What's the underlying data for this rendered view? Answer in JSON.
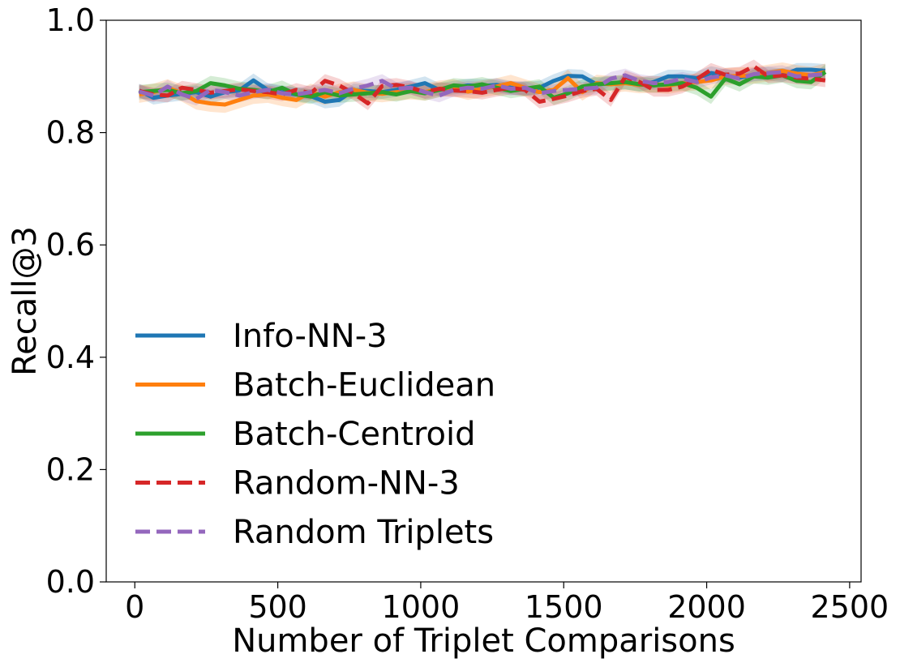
{
  "chart_data": {
    "type": "line",
    "title": "",
    "xlabel": "Number of Triplet Comparisons",
    "ylabel": "Recall@3",
    "xlim": [
      -100,
      2540
    ],
    "ylim": [
      0.0,
      1.0
    ],
    "xticks": [
      0,
      500,
      1000,
      1500,
      2000,
      2500
    ],
    "yticks": [
      0.0,
      0.2,
      0.4,
      0.6,
      0.8,
      1.0
    ],
    "xtick_labels": [
      "0",
      "500",
      "1000",
      "1500",
      "2000",
      "2500"
    ],
    "ytick_labels": [
      "0.0",
      "0.2",
      "0.4",
      "0.6",
      "0.8",
      "1.0"
    ],
    "grid": false,
    "legend_position": "lower-left",
    "x": [
      15,
      65,
      115,
      165,
      215,
      265,
      315,
      365,
      415,
      465,
      515,
      565,
      615,
      665,
      715,
      765,
      815,
      865,
      915,
      965,
      1015,
      1065,
      1115,
      1165,
      1215,
      1265,
      1315,
      1365,
      1415,
      1465,
      1515,
      1565,
      1615,
      1665,
      1715,
      1765,
      1815,
      1865,
      1915,
      1965,
      2015,
      2065,
      2115,
      2165,
      2215,
      2265,
      2315,
      2365,
      2415
    ],
    "series": [
      {
        "name": "Info-NN-3",
        "color": "#1f77b4",
        "dash": "solid",
        "values": [
          0.875,
          0.862,
          0.866,
          0.869,
          0.872,
          0.864,
          0.872,
          0.875,
          0.893,
          0.876,
          0.872,
          0.868,
          0.865,
          0.855,
          0.858,
          0.875,
          0.874,
          0.872,
          0.876,
          0.882,
          0.888,
          0.876,
          0.88,
          0.884,
          0.883,
          0.885,
          0.88,
          0.878,
          0.88,
          0.892,
          0.901,
          0.9,
          0.886,
          0.887,
          0.889,
          0.885,
          0.89,
          0.9,
          0.9,
          0.897,
          0.906,
          0.901,
          0.898,
          0.903,
          0.905,
          0.902,
          0.912,
          0.912,
          0.91
        ],
        "band": 0.012
      },
      {
        "name": "Batch-Euclidean",
        "color": "#ff7f0e",
        "dash": "solid",
        "values": [
          0.868,
          0.872,
          0.88,
          0.87,
          0.856,
          0.852,
          0.85,
          0.858,
          0.866,
          0.868,
          0.862,
          0.858,
          0.872,
          0.864,
          0.872,
          0.876,
          0.871,
          0.869,
          0.872,
          0.874,
          0.872,
          0.878,
          0.88,
          0.873,
          0.878,
          0.882,
          0.888,
          0.88,
          0.872,
          0.876,
          0.897,
          0.872,
          0.888,
          0.886,
          0.888,
          0.885,
          0.886,
          0.884,
          0.888,
          0.89,
          0.893,
          0.9,
          0.901,
          0.902,
          0.906,
          0.91,
          0.905,
          0.902,
          0.908
        ],
        "band": 0.015
      },
      {
        "name": "Batch-Centroid",
        "color": "#2ca02c",
        "dash": "solid",
        "values": [
          0.872,
          0.874,
          0.876,
          0.87,
          0.874,
          0.888,
          0.884,
          0.878,
          0.876,
          0.872,
          0.88,
          0.868,
          0.864,
          0.872,
          0.866,
          0.868,
          0.87,
          0.872,
          0.868,
          0.874,
          0.87,
          0.876,
          0.884,
          0.882,
          0.886,
          0.88,
          0.874,
          0.878,
          0.882,
          0.862,
          0.87,
          0.882,
          0.886,
          0.888,
          0.89,
          0.886,
          0.884,
          0.886,
          0.888,
          0.88,
          0.864,
          0.896,
          0.886,
          0.9,
          0.898,
          0.902,
          0.892,
          0.89,
          0.908
        ],
        "band": 0.013
      },
      {
        "name": "Random-NN-3",
        "color": "#d62728",
        "dash": "dashed",
        "values": [
          0.874,
          0.868,
          0.866,
          0.88,
          0.876,
          0.871,
          0.874,
          0.877,
          0.874,
          0.872,
          0.868,
          0.876,
          0.87,
          0.892,
          0.884,
          0.87,
          0.852,
          0.883,
          0.885,
          0.88,
          0.872,
          0.878,
          0.875,
          0.874,
          0.871,
          0.876,
          0.88,
          0.876,
          0.855,
          0.86,
          0.866,
          0.874,
          0.878,
          0.858,
          0.899,
          0.89,
          0.876,
          0.876,
          0.882,
          0.895,
          0.912,
          0.903,
          0.905,
          0.918,
          0.9,
          0.902,
          0.898,
          0.896,
          0.893
        ],
        "band": 0.012
      },
      {
        "name": "Random Triplets",
        "color": "#9467bd",
        "dash": "dashed",
        "values": [
          0.873,
          0.866,
          0.882,
          0.868,
          0.86,
          0.876,
          0.872,
          0.866,
          0.872,
          0.876,
          0.87,
          0.868,
          0.872,
          0.876,
          0.87,
          0.878,
          0.884,
          0.892,
          0.878,
          0.88,
          0.872,
          0.866,
          0.876,
          0.88,
          0.878,
          0.884,
          0.878,
          0.88,
          0.87,
          0.874,
          0.876,
          0.878,
          0.88,
          0.896,
          0.902,
          0.892,
          0.888,
          0.89,
          0.896,
          0.89,
          0.898,
          0.902,
          0.896,
          0.904,
          0.906,
          0.908,
          0.9,
          0.902,
          0.904
        ],
        "band": 0.012
      }
    ]
  }
}
